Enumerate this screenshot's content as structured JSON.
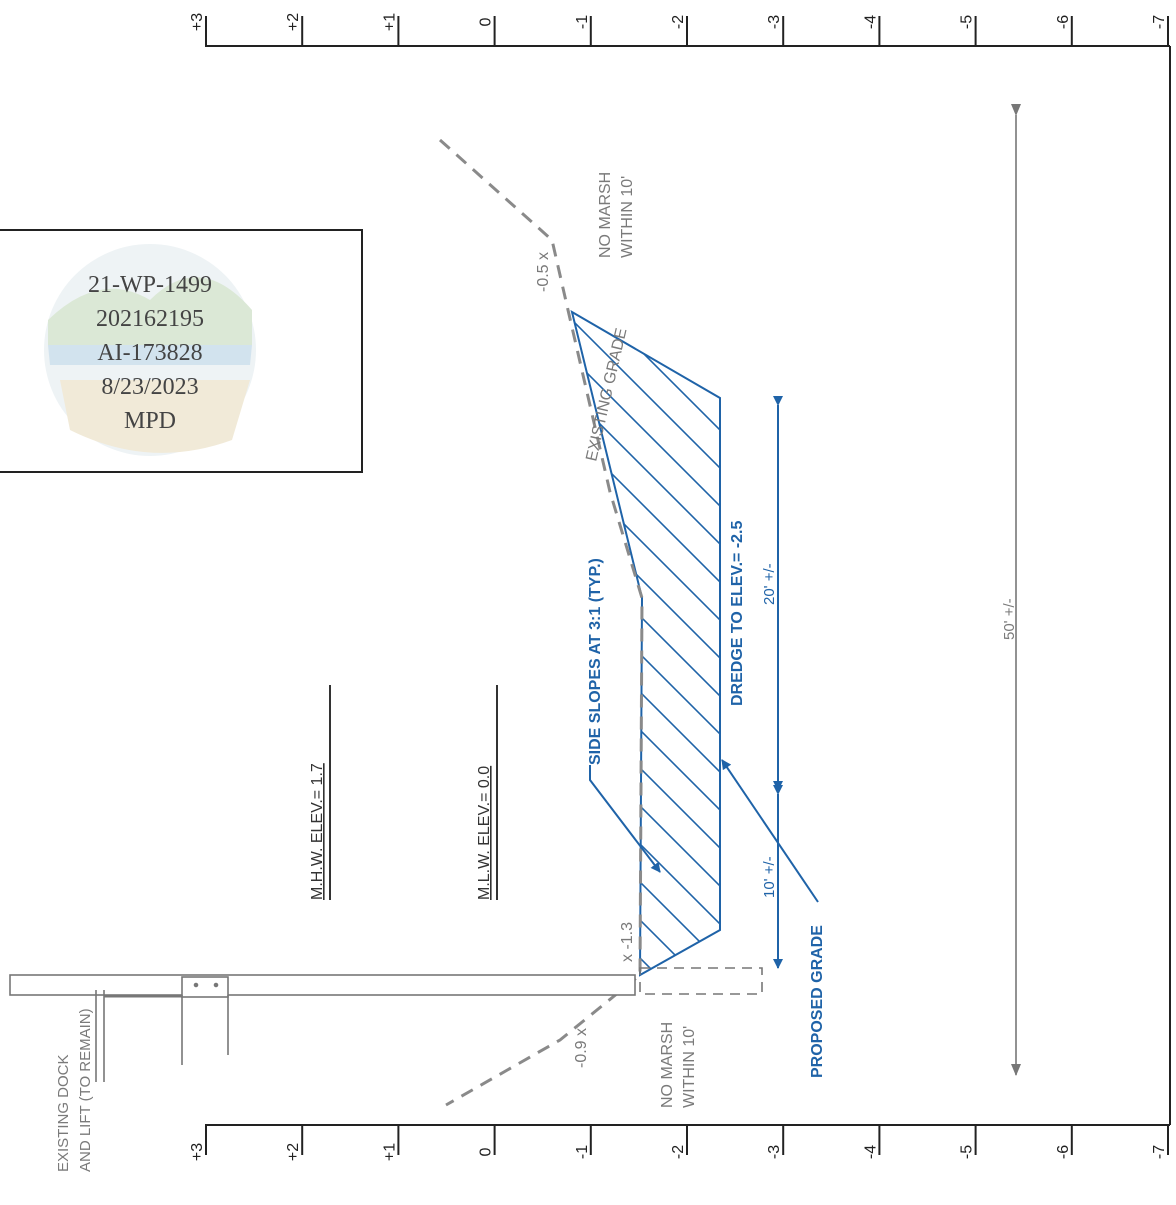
{
  "scale": {
    "labels": [
      "+3",
      "+2",
      "+1",
      "0",
      "-1",
      "-2",
      "-3",
      "-4",
      "-5",
      "-6",
      "-7"
    ]
  },
  "stamp": {
    "line1": "21-WP-1499",
    "line2": "202162195",
    "line3": "AI-173828",
    "line4": "8/23/2023",
    "line5": "MPD"
  },
  "labels": {
    "mhw": "M.H.W. ELEV.= 1.7",
    "mlw": "M.L.W. ELEV.= 0.0",
    "existing_dock_1": "EXISTING DOCK",
    "existing_dock_2": "AND LIFT (TO REMAIN)",
    "side_slopes": "SIDE SLOPES AT 3:1 (TYP.)",
    "existing_grade": "EXISTING GRADE",
    "dredge": "DREDGE TO ELEV.= -2.5",
    "proposed_grade": "PROPOSED GRADE",
    "no_marsh_top_1": "NO MARSH",
    "no_marsh_top_2": "WITHIN 10'",
    "no_marsh_bottom_1": "NO MARSH",
    "no_marsh_bottom_2": "WITHIN 10'",
    "spot_top": "-0.5 x",
    "spot_mid": "x -1.3",
    "spot_bottom": "-0.9 x",
    "dim_20": "20' +/-",
    "dim_10": "10' +/-",
    "dim_50": "50' +/-"
  },
  "colors": {
    "blue": "#1f63a8",
    "gray_dash": "#8a8a8a",
    "frame": "#222222"
  }
}
